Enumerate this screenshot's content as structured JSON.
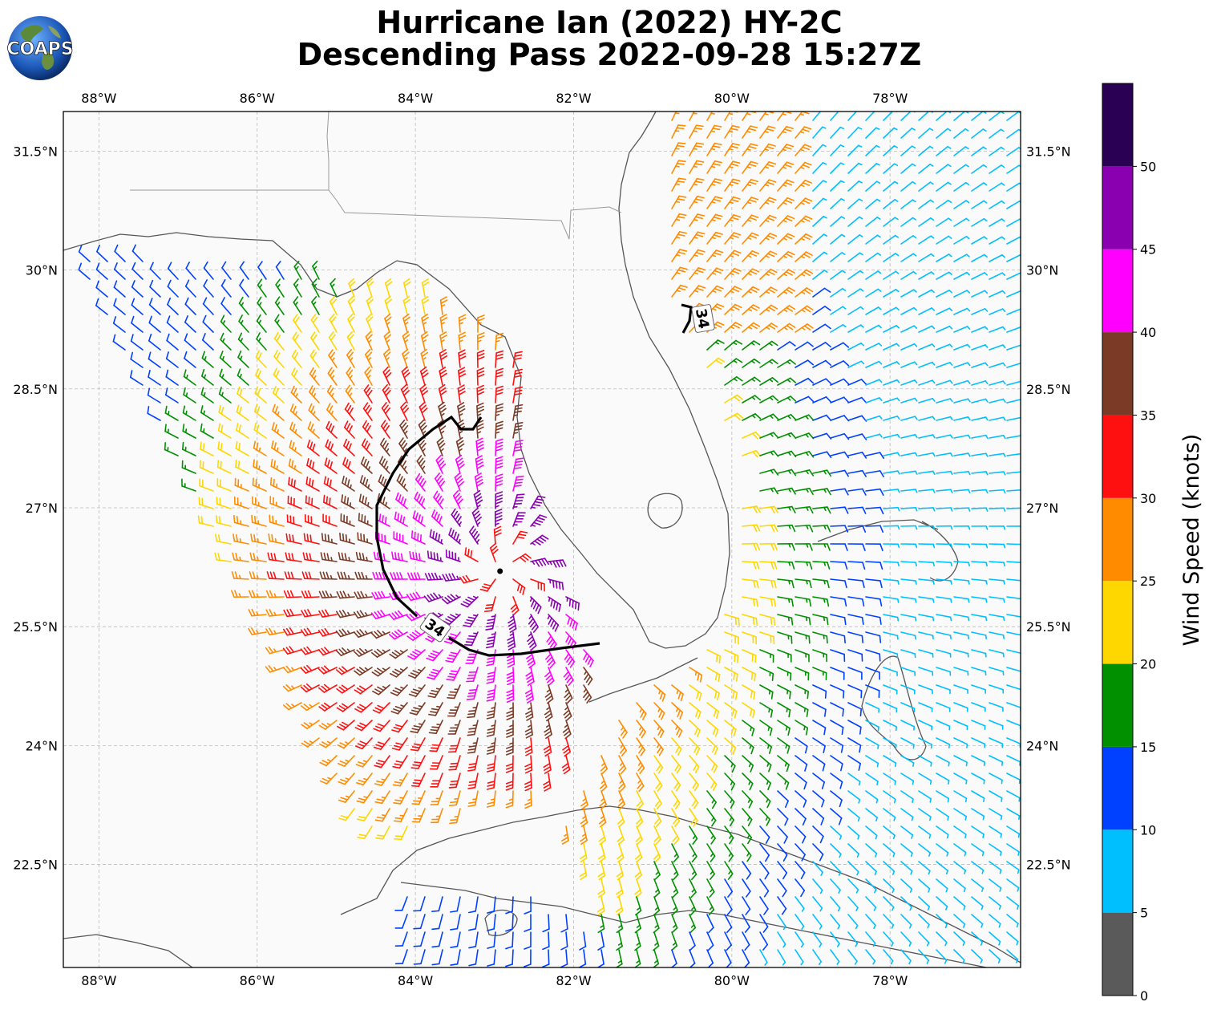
{
  "title": {
    "line1": "Hurricane Ian (2022) HY-2C",
    "line2": "Descending Pass 2022-09-28 15:27Z"
  },
  "logo": {
    "text": "COAPS",
    "icon": "earth-globe-icon"
  },
  "map": {
    "lon_ticks": [
      "88°W",
      "86°W",
      "84°W",
      "82°W",
      "80°W",
      "78°W"
    ],
    "lon_values": [
      -88,
      -86,
      -84,
      -82,
      -80,
      -78
    ],
    "lat_ticks": [
      "31.5°N",
      "30°N",
      "28.5°N",
      "27°N",
      "25.5°N",
      "24°N",
      "22.5°N"
    ],
    "lat_values": [
      31.5,
      30,
      28.5,
      27,
      25.5,
      24,
      22.5
    ],
    "extent": {
      "lon_min": -88.45,
      "lon_max": -76.35,
      "lat_min": 21.2,
      "lat_max": 32.0
    },
    "gridlines": true,
    "contour_label": "34",
    "storm_center": {
      "lon": -82.93,
      "lat": 26.2
    }
  },
  "colorbar": {
    "label": "Wind Speed (knots)",
    "ticks": [
      "0",
      "5",
      "10",
      "15",
      "20",
      "25",
      "30",
      "35",
      "40",
      "45",
      "50"
    ],
    "bins": [
      {
        "from": 0,
        "to": 5,
        "color": "#5a5a5a"
      },
      {
        "from": 5,
        "to": 10,
        "color": "#00bfff"
      },
      {
        "from": 10,
        "to": 15,
        "color": "#0040ff"
      },
      {
        "from": 15,
        "to": 20,
        "color": "#009000"
      },
      {
        "from": 20,
        "to": 25,
        "color": "#ffd700"
      },
      {
        "from": 25,
        "to": 30,
        "color": "#ff8c00"
      },
      {
        "from": 30,
        "to": 35,
        "color": "#ff1010"
      },
      {
        "from": 35,
        "to": 40,
        "color": "#7a3a25"
      },
      {
        "from": 40,
        "to": 45,
        "color": "#ff00ff"
      },
      {
        "from": 45,
        "to": 50,
        "color": "#8a00b0"
      },
      {
        "from": 50,
        "to": 55,
        "color": "#2a0055"
      }
    ]
  }
}
